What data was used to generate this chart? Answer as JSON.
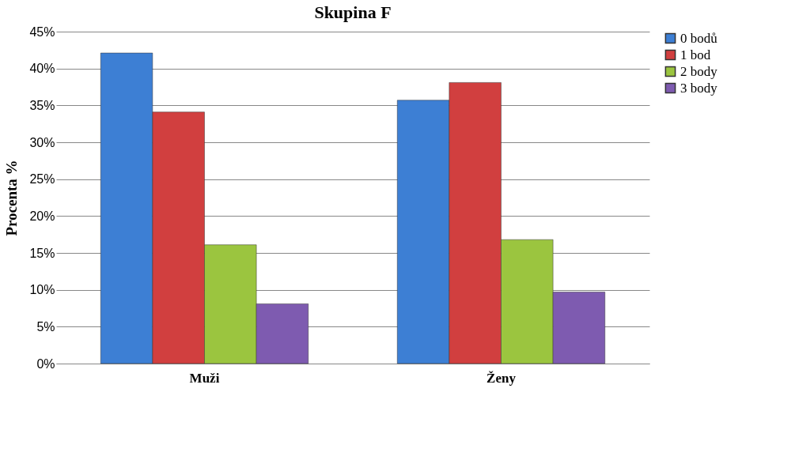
{
  "chart_data": {
    "type": "bar",
    "title": "Skupina F",
    "ylabel": "Procenta %",
    "categories": [
      "Muži",
      "Ženy"
    ],
    "series": [
      {
        "name": "0 bodů",
        "color": "#3d7fd4",
        "values": [
          42.1,
          35.7
        ]
      },
      {
        "name": "1 bod",
        "color": "#d13f3f",
        "values": [
          34.1,
          38.1
        ]
      },
      {
        "name": "2 body",
        "color": "#9bc53f",
        "values": [
          16.1,
          16.8
        ]
      },
      {
        "name": "3 body",
        "color": "#7e5bb0",
        "values": [
          8.1,
          9.7
        ]
      }
    ],
    "ylim": [
      0,
      45
    ],
    "yticks": [
      {
        "value": 0,
        "label": "0%"
      },
      {
        "value": 5,
        "label": "5%"
      },
      {
        "value": 10,
        "label": "10%"
      },
      {
        "value": 15,
        "label": "15%"
      },
      {
        "value": 20,
        "label": "20%"
      },
      {
        "value": 25,
        "label": "25%"
      },
      {
        "value": 30,
        "label": "30%"
      },
      {
        "value": 35,
        "label": "35%"
      },
      {
        "value": 40,
        "label": "40%"
      },
      {
        "value": 45,
        "label": "45%"
      }
    ],
    "grid": "y",
    "legend": "right"
  }
}
